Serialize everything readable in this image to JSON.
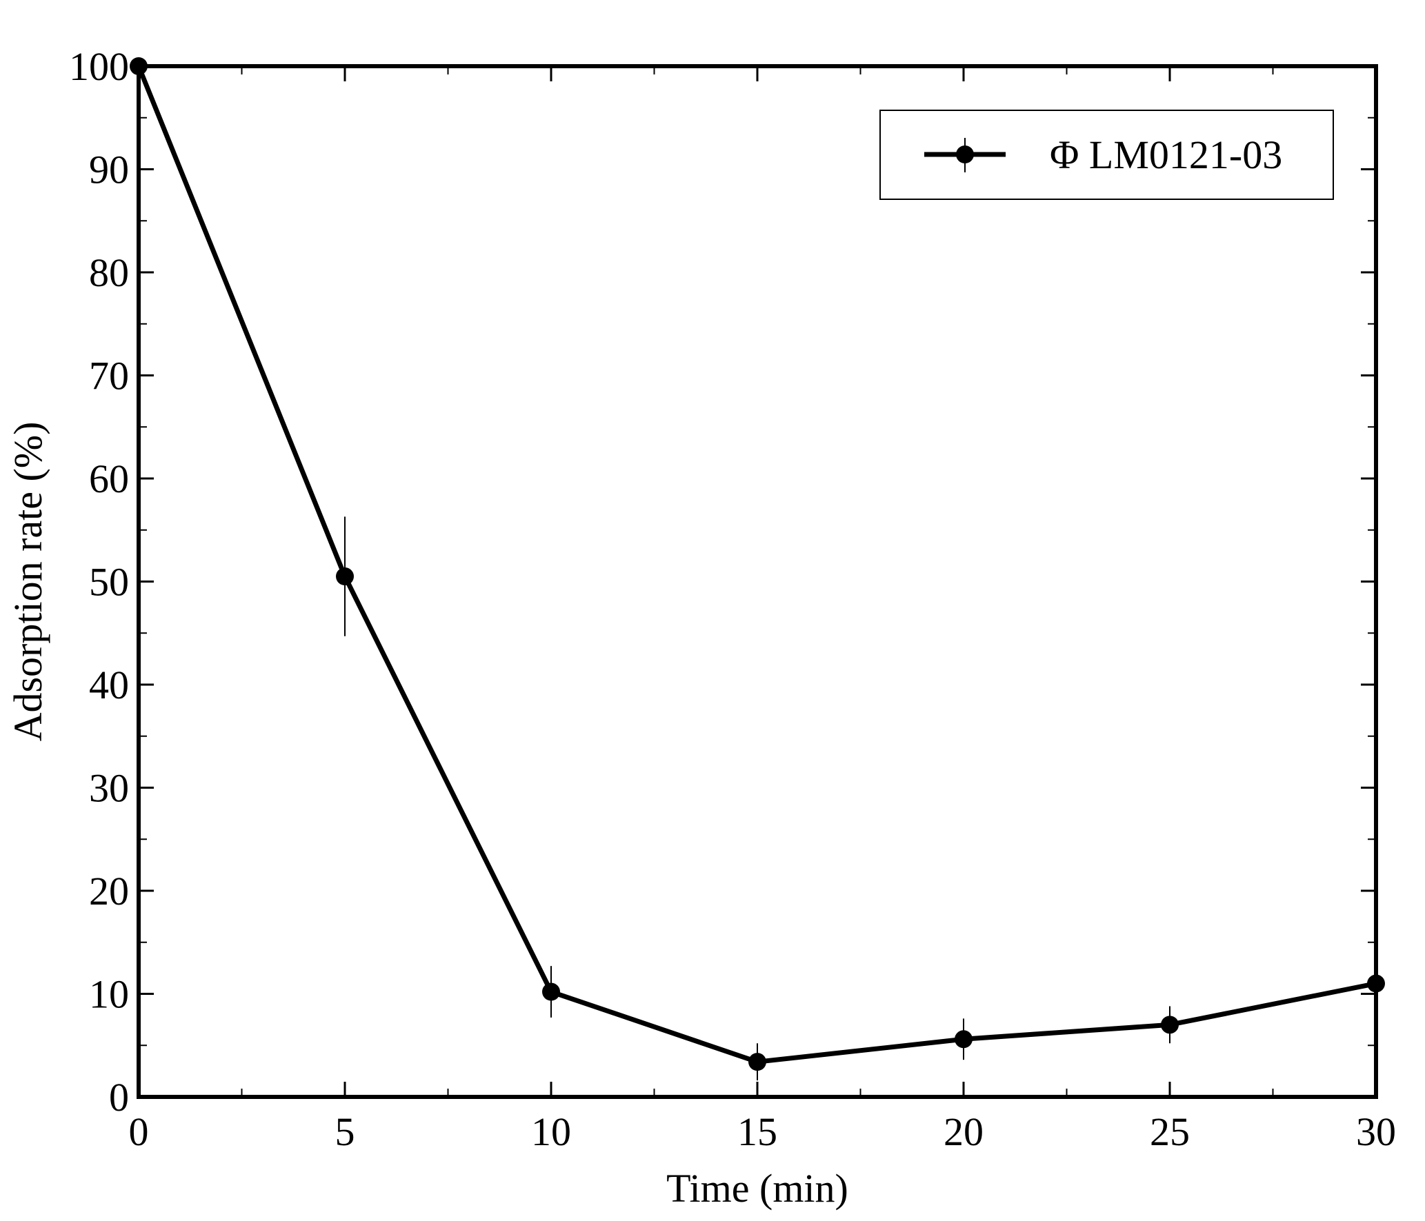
{
  "chart_data": {
    "type": "line",
    "title": "",
    "xlabel": "Time (min)",
    "ylabel": "Adsorption rate (%)",
    "xlim": [
      0,
      30
    ],
    "ylim": [
      0,
      100
    ],
    "x_ticks": [
      0,
      5,
      10,
      15,
      20,
      25,
      30
    ],
    "y_ticks": [
      0,
      10,
      20,
      30,
      40,
      50,
      60,
      70,
      80,
      90,
      100
    ],
    "x_minor_step": 2.5,
    "y_minor_step": 5,
    "grid": false,
    "legend_position": "top-right",
    "series": [
      {
        "name": "Φ LM0121-03",
        "color": "#000000",
        "marker": "circle",
        "x": [
          0,
          5,
          10,
          15,
          20,
          25,
          30
        ],
        "y": [
          100,
          50.5,
          10.2,
          3.4,
          5.6,
          7.0,
          11.0
        ],
        "error": [
          0,
          5.8,
          2.5,
          1.8,
          2.0,
          1.8,
          0
        ]
      }
    ]
  }
}
